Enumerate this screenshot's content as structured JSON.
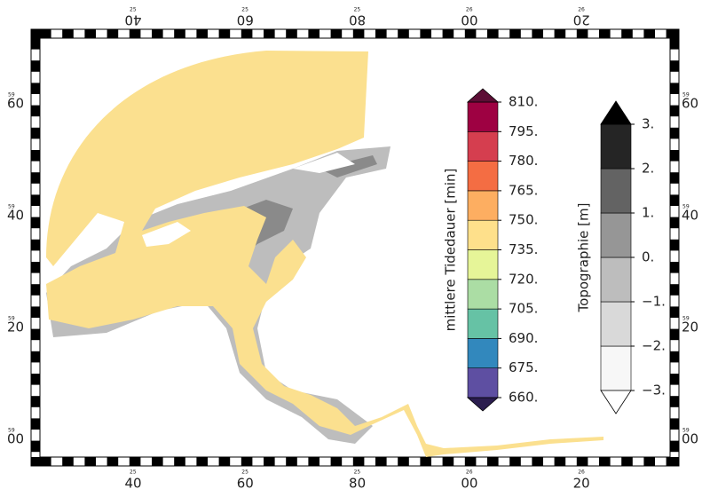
{
  "map": {
    "x_labels": [
      "40",
      "60",
      "80",
      "00",
      "20"
    ],
    "x_prefix": [
      "25",
      "25",
      "25",
      "26",
      "26"
    ],
    "y_labels": [
      "60",
      "40",
      "20",
      "00"
    ],
    "y_prefix": "59"
  },
  "colorbar_tide": {
    "label": "mittlere Tidedauer [min]",
    "ticks": [
      {
        "value": 660,
        "label": "660."
      },
      {
        "value": 675,
        "label": "675."
      },
      {
        "value": 690,
        "label": "690."
      },
      {
        "value": 705,
        "label": "705."
      },
      {
        "value": 720,
        "label": "720."
      },
      {
        "value": 735,
        "label": "735."
      },
      {
        "value": 750,
        "label": "750."
      },
      {
        "value": 765,
        "label": "765."
      },
      {
        "value": 780,
        "label": "780."
      },
      {
        "value": 795,
        "label": "795."
      },
      {
        "value": 810,
        "label": "810."
      }
    ],
    "colors": [
      "#5e4fa2",
      "#3288bd",
      "#66c2a5",
      "#abdda4",
      "#e6f598",
      "#fee08b",
      "#fdae61",
      "#f46d43",
      "#d53e4f",
      "#9e0142"
    ],
    "under_color": "#2b1d4f",
    "over_color": "#5c0e35"
  },
  "colorbar_topo": {
    "label": "Topographie [m]",
    "ticks": [
      {
        "value": -3,
        "label": "−3."
      },
      {
        "value": -2,
        "label": "−2."
      },
      {
        "value": -1,
        "label": "−1."
      },
      {
        "value": 0,
        "label": "0."
      },
      {
        "value": 1,
        "label": "1."
      },
      {
        "value": 2,
        "label": "2."
      },
      {
        "value": 3,
        "label": "3."
      }
    ],
    "colors": [
      "#f7f7f7",
      "#d9d9d9",
      "#bdbdbd",
      "#969696",
      "#636363",
      "#252525"
    ],
    "under_color": "#ffffff",
    "over_color": "#000000"
  }
}
